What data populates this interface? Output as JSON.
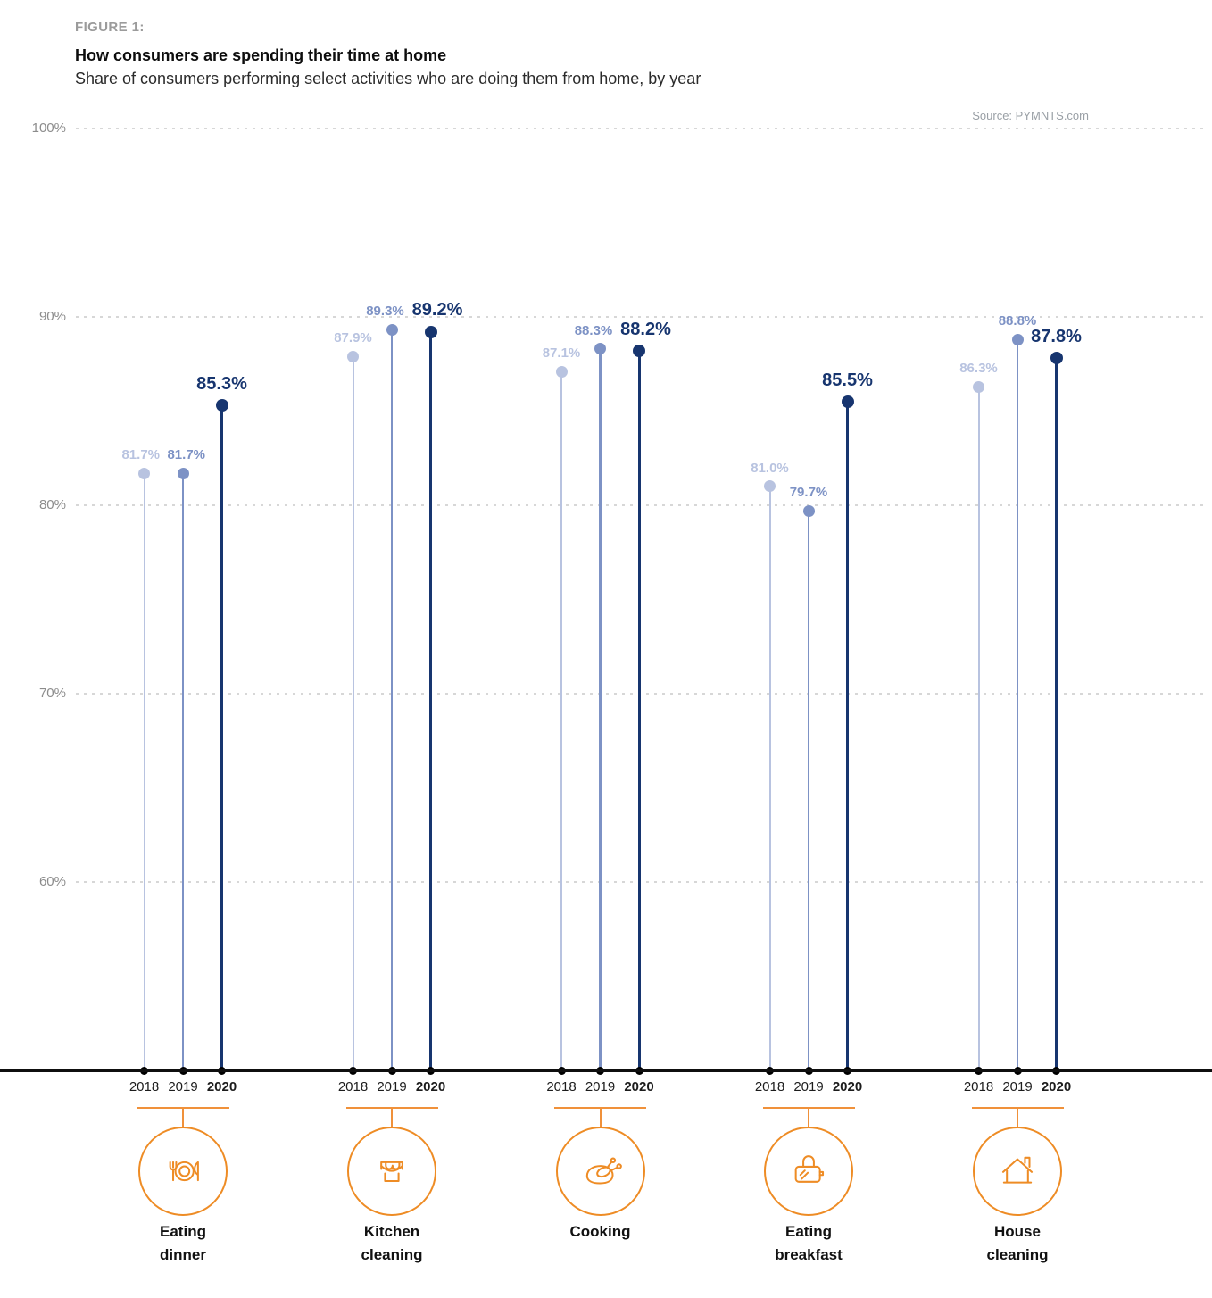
{
  "header": {
    "figure_label": "FIGURE 1:",
    "title": "How consumers are spending their time at home",
    "subtitle": "Share of consumers performing select activities who are doing them from home, by year",
    "source": "Source: PYMNTS.com"
  },
  "chart_data": {
    "type": "lollipop",
    "title": "How consumers are spending their time at home",
    "subtitle": "Share of consumers performing select activities who are doing them from home, by year",
    "source": "Source: PYMNTS.com",
    "unit": "%",
    "years": [
      "2018",
      "2019",
      "2020"
    ],
    "year_colors": {
      "2018": "#b8c3e0",
      "2019": "#7d92c5",
      "2020": "#17356f"
    },
    "accent_orange": "#ee8c25",
    "categories": [
      {
        "label": "Eating dinner",
        "label_lines": [
          "Eating",
          "dinner"
        ],
        "icon": "dinner-plate-icon",
        "values": [
          81.7,
          81.7,
          85.3
        ]
      },
      {
        "label": "Kitchen cleaning",
        "label_lines": [
          "Kitchen",
          "cleaning"
        ],
        "icon": "cleaning-bucket-icon",
        "values": [
          87.9,
          89.3,
          89.2
        ]
      },
      {
        "label": "Cooking",
        "label_lines": [
          "Cooking"
        ],
        "icon": "roast-chicken-icon",
        "values": [
          87.1,
          88.3,
          88.2
        ]
      },
      {
        "label": "Eating breakfast",
        "label_lines": [
          "Eating",
          "breakfast"
        ],
        "icon": "toaster-icon",
        "values": [
          81.0,
          79.7,
          85.5
        ]
      },
      {
        "label": "House cleaning",
        "label_lines": [
          "House",
          "cleaning"
        ],
        "icon": "house-icon",
        "values": [
          86.3,
          88.8,
          87.8
        ]
      }
    ],
    "y_axis": {
      "tick_labels": [
        "100%",
        "90%",
        "80%",
        "70%",
        "60%"
      ],
      "tick_values": [
        100,
        90,
        80,
        70,
        60
      ],
      "min": 50,
      "max": 100,
      "grid": "dotted",
      "grid_color": "#d7d7d7"
    },
    "legend_position": "none"
  }
}
